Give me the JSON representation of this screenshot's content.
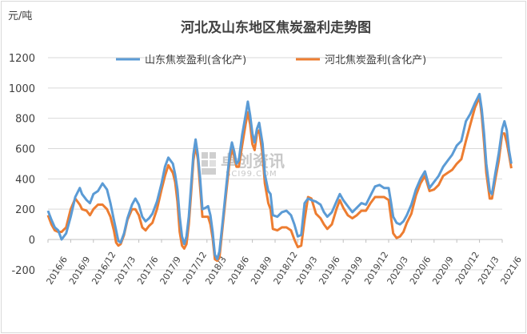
{
  "chart_data": {
    "type": "line",
    "title": "河北及山东地区焦炭盈利走势图",
    "unit_label": "元/吨",
    "ylim": [
      -200,
      1200
    ],
    "yticks": [
      -200,
      0,
      200,
      400,
      600,
      800,
      1000,
      1200
    ],
    "x_ticks": [
      "2016/6",
      "2016/9",
      "2016/12",
      "2017/3",
      "2017/6",
      "2017/9",
      "2017/12",
      "2018/3",
      "2018/6",
      "2018/9",
      "2018/12",
      "2019/3",
      "2019/6",
      "2019/9",
      "2019/12",
      "2020/3",
      "2020/6",
      "2020/9",
      "2020/12",
      "2021/3",
      "2021/6"
    ],
    "grid": "horizontal",
    "legend_position": "top",
    "watermark": {
      "text": "卓创资讯",
      "sub": "SCI99.COM"
    },
    "series": [
      {
        "name": "山东焦炭盈利(含化产)",
        "color": "#5b9bd5",
        "points": [
          [
            0,
            190
          ],
          [
            0.15,
            130
          ],
          [
            0.3,
            80
          ],
          [
            0.45,
            60
          ],
          [
            0.6,
            0
          ],
          [
            0.8,
            40
          ],
          [
            1.0,
            150
          ],
          [
            1.2,
            280
          ],
          [
            1.4,
            340
          ],
          [
            1.5,
            300
          ],
          [
            1.7,
            260
          ],
          [
            1.85,
            240
          ],
          [
            2.0,
            300
          ],
          [
            2.2,
            320
          ],
          [
            2.4,
            370
          ],
          [
            2.6,
            330
          ],
          [
            2.75,
            240
          ],
          [
            2.9,
            130
          ],
          [
            3.0,
            60
          ],
          [
            3.1,
            -10
          ],
          [
            3.2,
            -20
          ],
          [
            3.35,
            40
          ],
          [
            3.5,
            140
          ],
          [
            3.7,
            230
          ],
          [
            3.85,
            270
          ],
          [
            4.0,
            230
          ],
          [
            4.15,
            150
          ],
          [
            4.3,
            120
          ],
          [
            4.45,
            140
          ],
          [
            4.6,
            170
          ],
          [
            4.8,
            250
          ],
          [
            5.0,
            370
          ],
          [
            5.15,
            480
          ],
          [
            5.3,
            540
          ],
          [
            5.5,
            500
          ],
          [
            5.6,
            430
          ],
          [
            5.7,
            330
          ],
          [
            5.8,
            150
          ],
          [
            5.9,
            20
          ],
          [
            6.0,
            -30
          ],
          [
            6.1,
            20
          ],
          [
            6.2,
            150
          ],
          [
            6.3,
            350
          ],
          [
            6.4,
            560
          ],
          [
            6.5,
            660
          ],
          [
            6.6,
            560
          ],
          [
            6.7,
            400
          ],
          [
            6.8,
            200
          ],
          [
            6.95,
            210
          ],
          [
            7.05,
            220
          ],
          [
            7.15,
            160
          ],
          [
            7.25,
            50
          ],
          [
            7.35,
            -100
          ],
          [
            7.45,
            -130
          ],
          [
            7.55,
            -80
          ],
          [
            7.7,
            130
          ],
          [
            7.85,
            350
          ],
          [
            8.0,
            560
          ],
          [
            8.1,
            640
          ],
          [
            8.2,
            580
          ],
          [
            8.3,
            500
          ],
          [
            8.4,
            520
          ],
          [
            8.55,
            690
          ],
          [
            8.7,
            820
          ],
          [
            8.8,
            910
          ],
          [
            8.9,
            820
          ],
          [
            9.0,
            700
          ],
          [
            9.1,
            640
          ],
          [
            9.2,
            730
          ],
          [
            9.3,
            770
          ],
          [
            9.45,
            630
          ],
          [
            9.55,
            430
          ],
          [
            9.7,
            320
          ],
          [
            9.8,
            300
          ],
          [
            9.9,
            160
          ],
          [
            10.1,
            150
          ],
          [
            10.3,
            180
          ],
          [
            10.5,
            190
          ],
          [
            10.7,
            160
          ],
          [
            10.85,
            100
          ],
          [
            11.0,
            20
          ],
          [
            11.15,
            30
          ],
          [
            11.3,
            240
          ],
          [
            11.45,
            270
          ],
          [
            11.6,
            260
          ],
          [
            11.8,
            250
          ],
          [
            12.0,
            230
          ],
          [
            12.15,
            180
          ],
          [
            12.3,
            150
          ],
          [
            12.5,
            180
          ],
          [
            12.7,
            250
          ],
          [
            12.85,
            300
          ],
          [
            13.0,
            260
          ],
          [
            13.2,
            220
          ],
          [
            13.4,
            180
          ],
          [
            13.6,
            210
          ],
          [
            13.8,
            240
          ],
          [
            14.0,
            230
          ],
          [
            14.2,
            290
          ],
          [
            14.4,
            350
          ],
          [
            14.6,
            360
          ],
          [
            14.8,
            340
          ],
          [
            15.0,
            340
          ],
          [
            15.1,
            250
          ],
          [
            15.2,
            150
          ],
          [
            15.35,
            110
          ],
          [
            15.5,
            100
          ],
          [
            15.65,
            120
          ],
          [
            15.8,
            160
          ],
          [
            16.0,
            230
          ],
          [
            16.2,
            330
          ],
          [
            16.4,
            400
          ],
          [
            16.6,
            450
          ],
          [
            16.8,
            340
          ],
          [
            17.0,
            380
          ],
          [
            17.2,
            420
          ],
          [
            17.4,
            480
          ],
          [
            17.6,
            520
          ],
          [
            17.8,
            560
          ],
          [
            18.0,
            620
          ],
          [
            18.2,
            650
          ],
          [
            18.4,
            780
          ],
          [
            18.6,
            830
          ],
          [
            18.8,
            900
          ],
          [
            19.0,
            960
          ],
          [
            19.1,
            860
          ],
          [
            19.2,
            700
          ],
          [
            19.3,
            500
          ],
          [
            19.45,
            320
          ],
          [
            19.55,
            300
          ],
          [
            19.7,
            440
          ],
          [
            19.85,
            570
          ],
          [
            20.0,
            730
          ],
          [
            20.1,
            780
          ],
          [
            20.2,
            720
          ],
          [
            20.3,
            590
          ],
          [
            20.4,
            500
          ]
        ]
      },
      {
        "name": "河北焦炭盈利(含化产)",
        "color": "#ed7d31",
        "points": [
          [
            0,
            160
          ],
          [
            0.15,
            100
          ],
          [
            0.3,
            60
          ],
          [
            0.45,
            50
          ],
          [
            0.6,
            50
          ],
          [
            0.8,
            80
          ],
          [
            1.0,
            200
          ],
          [
            1.2,
            270
          ],
          [
            1.4,
            230
          ],
          [
            1.5,
            200
          ],
          [
            1.7,
            190
          ],
          [
            1.85,
            160
          ],
          [
            2.0,
            200
          ],
          [
            2.2,
            230
          ],
          [
            2.4,
            230
          ],
          [
            2.6,
            200
          ],
          [
            2.75,
            150
          ],
          [
            2.9,
            60
          ],
          [
            3.0,
            -20
          ],
          [
            3.1,
            -40
          ],
          [
            3.2,
            -30
          ],
          [
            3.35,
            30
          ],
          [
            3.5,
            130
          ],
          [
            3.7,
            200
          ],
          [
            3.85,
            200
          ],
          [
            4.0,
            160
          ],
          [
            4.15,
            80
          ],
          [
            4.3,
            60
          ],
          [
            4.45,
            90
          ],
          [
            4.6,
            110
          ],
          [
            4.8,
            200
          ],
          [
            5.0,
            330
          ],
          [
            5.15,
            420
          ],
          [
            5.3,
            490
          ],
          [
            5.5,
            440
          ],
          [
            5.6,
            380
          ],
          [
            5.7,
            250
          ],
          [
            5.8,
            50
          ],
          [
            5.9,
            -40
          ],
          [
            6.0,
            -60
          ],
          [
            6.1,
            -30
          ],
          [
            6.2,
            100
          ],
          [
            6.3,
            300
          ],
          [
            6.4,
            520
          ],
          [
            6.5,
            620
          ],
          [
            6.6,
            530
          ],
          [
            6.7,
            340
          ],
          [
            6.8,
            150
          ],
          [
            6.95,
            150
          ],
          [
            7.05,
            150
          ],
          [
            7.15,
            100
          ],
          [
            7.25,
            10
          ],
          [
            7.35,
            -130
          ],
          [
            7.45,
            -140
          ],
          [
            7.55,
            -120
          ],
          [
            7.7,
            100
          ],
          [
            7.85,
            310
          ],
          [
            8.0,
            520
          ],
          [
            8.1,
            600
          ],
          [
            8.2,
            550
          ],
          [
            8.3,
            480
          ],
          [
            8.4,
            480
          ],
          [
            8.55,
            620
          ],
          [
            8.7,
            760
          ],
          [
            8.8,
            840
          ],
          [
            8.9,
            760
          ],
          [
            9.0,
            630
          ],
          [
            9.1,
            590
          ],
          [
            9.2,
            700
          ],
          [
            9.3,
            720
          ],
          [
            9.45,
            560
          ],
          [
            9.55,
            370
          ],
          [
            9.7,
            240
          ],
          [
            9.8,
            200
          ],
          [
            9.9,
            70
          ],
          [
            10.1,
            60
          ],
          [
            10.3,
            80
          ],
          [
            10.5,
            80
          ],
          [
            10.7,
            60
          ],
          [
            10.85,
            0
          ],
          [
            11.0,
            -50
          ],
          [
            11.15,
            -40
          ],
          [
            11.3,
            130
          ],
          [
            11.45,
            280
          ],
          [
            11.6,
            270
          ],
          [
            11.8,
            170
          ],
          [
            12.0,
            140
          ],
          [
            12.15,
            100
          ],
          [
            12.3,
            70
          ],
          [
            12.5,
            100
          ],
          [
            12.7,
            200
          ],
          [
            12.85,
            260
          ],
          [
            13.0,
            210
          ],
          [
            13.2,
            160
          ],
          [
            13.4,
            140
          ],
          [
            13.6,
            160
          ],
          [
            13.8,
            190
          ],
          [
            14.0,
            190
          ],
          [
            14.2,
            240
          ],
          [
            14.4,
            280
          ],
          [
            14.6,
            280
          ],
          [
            14.8,
            280
          ],
          [
            15.0,
            260
          ],
          [
            15.1,
            150
          ],
          [
            15.2,
            40
          ],
          [
            15.35,
            10
          ],
          [
            15.5,
            20
          ],
          [
            15.65,
            50
          ],
          [
            15.8,
            110
          ],
          [
            16.0,
            170
          ],
          [
            16.2,
            290
          ],
          [
            16.4,
            370
          ],
          [
            16.6,
            420
          ],
          [
            16.8,
            320
          ],
          [
            17.0,
            330
          ],
          [
            17.2,
            360
          ],
          [
            17.4,
            420
          ],
          [
            17.6,
            440
          ],
          [
            17.8,
            460
          ],
          [
            18.0,
            500
          ],
          [
            18.2,
            530
          ],
          [
            18.4,
            650
          ],
          [
            18.6,
            760
          ],
          [
            18.8,
            870
          ],
          [
            19.0,
            940
          ],
          [
            19.1,
            820
          ],
          [
            19.2,
            640
          ],
          [
            19.3,
            440
          ],
          [
            19.45,
            270
          ],
          [
            19.55,
            270
          ],
          [
            19.7,
            400
          ],
          [
            19.85,
            520
          ],
          [
            20.0,
            700
          ],
          [
            20.1,
            700
          ],
          [
            20.2,
            640
          ],
          [
            20.3,
            560
          ],
          [
            20.4,
            470
          ]
        ]
      }
    ]
  }
}
